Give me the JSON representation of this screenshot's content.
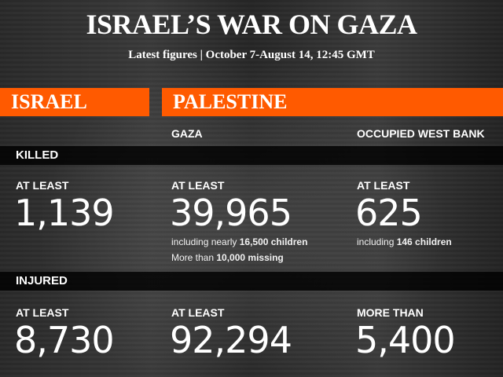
{
  "header": {
    "title": "ISRAEL’S WAR ON GAZA",
    "subtitle": "Latest figures | October 7-August 14, 12:45 GMT"
  },
  "bars": {
    "israel": "ISRAEL",
    "palestine": "PALESTINE"
  },
  "regions": {
    "gaza": "GAZA",
    "west_bank": "OCCUPIED WEST BANK"
  },
  "sections": {
    "killed": "KILLED",
    "injured": "INJURED"
  },
  "killed": {
    "israel": {
      "qualifier": "AT LEAST",
      "value": "1,139"
    },
    "gaza": {
      "qualifier": "AT LEAST",
      "value": "39,965",
      "note1_prefix": "including nearly ",
      "note1_bold": "16,500 children",
      "note2_prefix": "More than ",
      "note2_bold": "10,000 missing"
    },
    "west_bank": {
      "qualifier": "AT LEAST",
      "value": "625",
      "note1_prefix": "including ",
      "note1_bold": "146 children"
    }
  },
  "injured": {
    "israel": {
      "qualifier": "AT LEAST",
      "value": "8,730"
    },
    "gaza": {
      "qualifier": "AT LEAST",
      "value": "92,294"
    },
    "west_bank": {
      "qualifier": "MORE THAN",
      "value": "5,400"
    }
  },
  "colors": {
    "accent": "#ff5a00",
    "band": "#000000",
    "text": "#ffffff"
  }
}
